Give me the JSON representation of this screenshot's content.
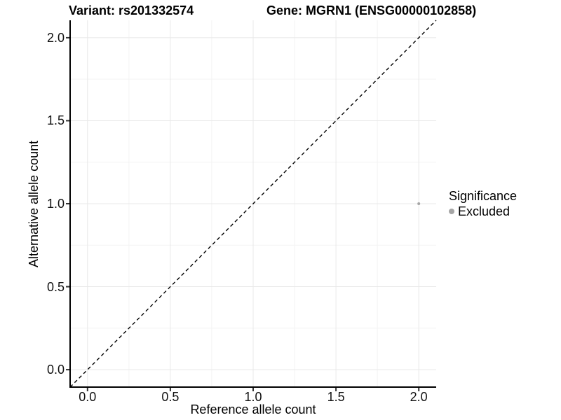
{
  "titles": {
    "variant": "Variant: rs201332574",
    "gene": "Gene: MGRN1 (ENSG00000102858)"
  },
  "axes": {
    "x_label": "Reference allele count",
    "y_label": "Alternative allele count"
  },
  "legend": {
    "title": "Significance",
    "items": [
      {
        "label": "Excluded",
        "color": "#a5a5a5"
      }
    ]
  },
  "chart_data": {
    "type": "scatter",
    "title": "Variant: rs201332574   Gene: MGRN1 (ENSG00000102858)",
    "xlabel": "Reference allele count",
    "ylabel": "Alternative allele count",
    "xlim": [
      -0.105,
      2.105
    ],
    "ylim": [
      -0.105,
      2.105
    ],
    "x_ticks": [
      0.0,
      0.5,
      1.0,
      1.5,
      2.0
    ],
    "y_ticks": [
      0.0,
      0.5,
      1.0,
      1.5,
      2.0
    ],
    "x_tick_labels": [
      "0.0",
      "0.5",
      "1.0",
      "1.5",
      "2.0"
    ],
    "y_tick_labels": [
      "0.0",
      "0.5",
      "1.0",
      "1.5",
      "2.0"
    ],
    "grid": true,
    "legend_position": "right",
    "series": [
      {
        "name": "Excluded",
        "color": "#a5a5a5",
        "points": [
          {
            "x": 2.0,
            "y": 1.0
          }
        ]
      }
    ],
    "reference_line": {
      "type": "identity",
      "style": "dashed",
      "color": "#000000",
      "dash": "5,4"
    },
    "colors": {
      "grid_major": "#e8e8e8",
      "grid_minor": "#f3f3f3",
      "axis": "#000000",
      "tick": "#333333",
      "point": "#a5a5a5",
      "background": "#ffffff"
    }
  }
}
